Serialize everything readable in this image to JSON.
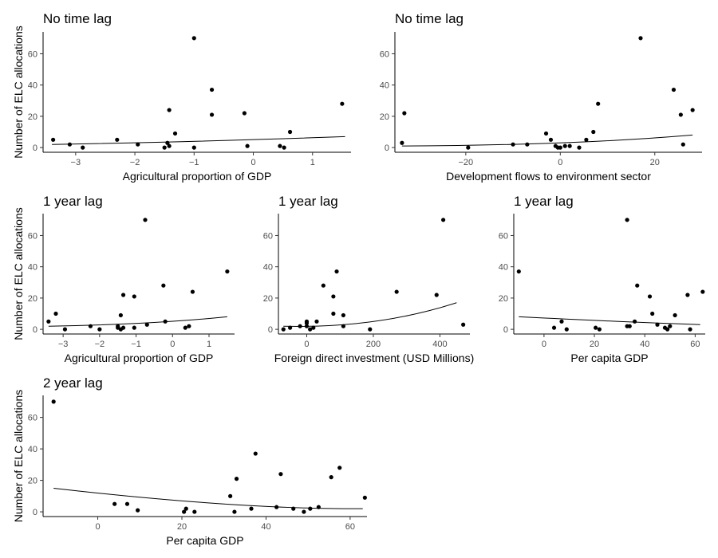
{
  "chart_data": [
    {
      "type": "scatter",
      "title": "No time lag",
      "xlabel": "Agricultural proportion of GDP",
      "ylabel": "Number of ELC allocations",
      "xlim": [
        -3.55,
        1.65
      ],
      "ylim": [
        -3,
        74
      ],
      "xticks": [
        -3,
        -2,
        -1,
        0,
        1
      ],
      "yticks": [
        0,
        20,
        40,
        60
      ],
      "x": [
        -3.38,
        -3.1,
        -2.88,
        -2.3,
        -1.95,
        -1.5,
        -1.45,
        -1.42,
        -1.42,
        -1.32,
        -1.0,
        -1.0,
        -0.7,
        -0.7,
        -0.15,
        -0.1,
        0.45,
        0.52,
        0.62,
        1.5
      ],
      "y": [
        5,
        2,
        0,
        5,
        2,
        0,
        3,
        1,
        24,
        9,
        70,
        0,
        37,
        21,
        22,
        1,
        1,
        0,
        10,
        28
      ],
      "fit": {
        "x": [
          -3.4,
          -1.0,
          1.55
        ],
        "y": [
          2,
          4,
          7
        ]
      }
    },
    {
      "type": "scatter",
      "title": "No time lag",
      "xlabel": "Development flows to environment sector",
      "ylabel": "",
      "xlim": [
        -35,
        30
      ],
      "ylim": [
        -3,
        74
      ],
      "xticks": [
        -20,
        0,
        20
      ],
      "yticks": [
        0,
        20,
        40,
        60
      ],
      "x": [
        -33.5,
        -33,
        -19.5,
        -10,
        -7,
        -3,
        -2,
        -1,
        -0.5,
        0,
        1,
        2,
        4,
        5.5,
        7,
        8,
        17,
        24,
        25.5,
        26,
        28
      ],
      "y": [
        3,
        22,
        0,
        2,
        2,
        9,
        5,
        1,
        0,
        0,
        1,
        1,
        0,
        5,
        10,
        28,
        70,
        37,
        21,
        2,
        24
      ],
      "fit": {
        "x": [
          -33.5,
          0,
          28
        ],
        "y": [
          1,
          3,
          8
        ]
      }
    },
    {
      "type": "scatter",
      "title": "1 year lag",
      "xlabel": "Agricultural proportion of GDP",
      "ylabel": "Number of ELC allocations",
      "xlim": [
        -3.55,
        1.7
      ],
      "ylim": [
        -3,
        74
      ],
      "xticks": [
        -3,
        -2,
        -1,
        0,
        1
      ],
      "yticks": [
        0,
        20,
        40,
        60
      ],
      "x": [
        -3.4,
        -3.2,
        -2.95,
        -2.25,
        -2.0,
        -1.5,
        -1.5,
        -1.42,
        -1.42,
        -1.35,
        -1.35,
        -1.05,
        -1.05,
        -0.75,
        -0.7,
        -0.25,
        -0.2,
        0.35,
        0.45,
        0.55,
        1.5
      ],
      "y": [
        5,
        10,
        0,
        2,
        0,
        1,
        2,
        9,
        0,
        22,
        1,
        21,
        1,
        70,
        3,
        28,
        5,
        1,
        2,
        24,
        37
      ],
      "fit": {
        "x": [
          -3.4,
          -0.8,
          1.5
        ],
        "y": [
          2,
          4,
          8
        ]
      }
    },
    {
      "type": "scatter",
      "title": "1 year lag",
      "xlabel": "Foreign direct investment (USD Millions)",
      "ylabel": "",
      "xlim": [
        -85,
        490
      ],
      "ylim": [
        -3,
        74
      ],
      "xticks": [
        0,
        200,
        400
      ],
      "yticks": [
        0,
        20,
        40,
        60
      ],
      "x": [
        -70,
        -50,
        -20,
        0,
        0,
        0,
        10,
        20,
        30,
        50,
        80,
        80,
        90,
        110,
        110,
        190,
        270,
        390,
        410,
        470
      ],
      "y": [
        0,
        1,
        2,
        2,
        5,
        4,
        0,
        1,
        5,
        28,
        21,
        10,
        37,
        2,
        9,
        0,
        24,
        22,
        70,
        3
      ],
      "fit": {
        "x": [
          -70,
          200,
          450
        ],
        "y": [
          2,
          5,
          17
        ]
      }
    },
    {
      "type": "scatter",
      "title": "1 year lag",
      "xlabel": "Per capita GDP",
      "ylabel": "",
      "xlim": [
        -12,
        64
      ],
      "ylim": [
        -3,
        74
      ],
      "xticks": [
        0,
        20,
        40,
        60
      ],
      "yticks": [
        0,
        20,
        40,
        60
      ],
      "x": [
        -10,
        4,
        7,
        9,
        20.5,
        22,
        33,
        33,
        34,
        36,
        37,
        42,
        43,
        45,
        48,
        49,
        50,
        52,
        57,
        58,
        63
      ],
      "y": [
        37,
        1,
        5,
        0,
        1,
        0,
        2,
        70,
        2,
        5,
        28,
        21,
        10,
        3,
        1,
        0,
        2,
        9,
        22,
        0,
        24
      ],
      "fit": {
        "x": [
          -10,
          30,
          62
        ],
        "y": [
          8,
          5,
          3
        ]
      }
    },
    {
      "type": "scatter",
      "title": "2 year lag",
      "xlabel": "Per capita GDP",
      "ylabel": "Number of ELC allocations",
      "xlim": [
        -13,
        64
      ],
      "ylim": [
        -3,
        74
      ],
      "xticks": [
        0,
        20,
        40,
        60
      ],
      "yticks": [
        0,
        20,
        40,
        60
      ],
      "x": [
        -10.5,
        4,
        7,
        9.5,
        20.5,
        21,
        23,
        31.5,
        32.5,
        33,
        36.5,
        37.5,
        42.5,
        43.5,
        46.5,
        49,
        50.5,
        52.5,
        55.5,
        57.5,
        63.5
      ],
      "y": [
        70,
        5,
        5,
        1,
        0,
        2,
        0,
        10,
        0,
        21,
        2,
        37,
        3,
        24,
        2,
        0,
        2,
        3,
        22,
        28,
        9
      ],
      "fit": {
        "x": [
          -10.5,
          30,
          63
        ],
        "y": [
          15,
          5,
          2
        ]
      }
    }
  ]
}
